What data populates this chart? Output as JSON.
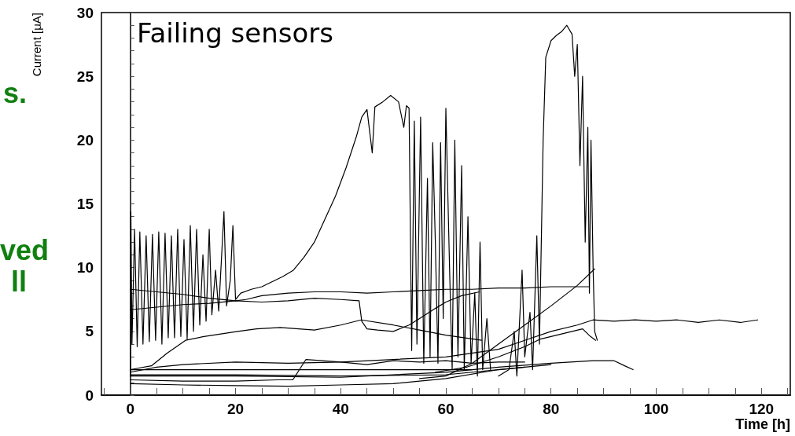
{
  "chart_data": {
    "type": "line",
    "title": "Failing sensors",
    "xlabel": "Time [h]",
    "ylabel": "Current [μA]",
    "annotations": [
      "s.",
      "ved",
      "ll"
    ],
    "marker": "none",
    "line_style": "solid",
    "xlim": [
      -5.5,
      125.5
    ],
    "ylim": [
      0,
      30
    ],
    "xticks": [
      {
        "value": -5,
        "label": null
      },
      0,
      {
        "value": 5,
        "label": null
      },
      {
        "value": 10,
        "label": null
      },
      {
        "value": 15,
        "label": null
      },
      20,
      {
        "value": 25,
        "label": null
      },
      {
        "value": 30,
        "label": null
      },
      {
        "value": 35,
        "label": null
      },
      40,
      {
        "value": 45,
        "label": null
      },
      {
        "value": 50,
        "label": null
      },
      {
        "value": 55,
        "label": null
      },
      60,
      {
        "value": 65,
        "label": null
      },
      {
        "value": 70,
        "label": null
      },
      {
        "value": 75,
        "label": null
      },
      80,
      {
        "value": 85,
        "label": null
      },
      {
        "value": 90,
        "label": null
      },
      {
        "value": 95,
        "label": null
      },
      100,
      {
        "value": 105,
        "label": null
      },
      {
        "value": 110,
        "label": null
      },
      {
        "value": 115,
        "label": null
      },
      120,
      {
        "value": 125,
        "label": null
      }
    ],
    "yticks": [
      0,
      {
        "value": 1,
        "label": null
      },
      {
        "value": 2,
        "label": null
      },
      {
        "value": 3,
        "label": null
      },
      {
        "value": 4,
        "label": null
      },
      5,
      {
        "value": 6,
        "label": null
      },
      {
        "value": 7,
        "label": null
      },
      {
        "value": 8,
        "label": null
      },
      {
        "value": 9,
        "label": null
      },
      10,
      {
        "value": 11,
        "label": null
      },
      {
        "value": 12,
        "label": null
      },
      {
        "value": 13,
        "label": null
      },
      {
        "value": 14,
        "label": null
      },
      15,
      {
        "value": 16,
        "label": null
      },
      {
        "value": 17,
        "label": null
      },
      {
        "value": 18,
        "label": null
      },
      {
        "value": 19,
        "label": null
      },
      20,
      {
        "value": 21,
        "label": null
      },
      {
        "value": 22,
        "label": null
      },
      {
        "value": 23,
        "label": null
      },
      {
        "value": 24,
        "label": null
      },
      25,
      {
        "value": 26,
        "label": null
      },
      {
        "value": 27,
        "label": null
      },
      {
        "value": 28,
        "label": null
      },
      {
        "value": 29,
        "label": null
      },
      30
    ],
    "series": [
      {
        "color": "#000000",
        "x": [
          0,
          0.1,
          0.3,
          0.8,
          1.3,
          1.8,
          2.4,
          3,
          3.6,
          4.2,
          4.8,
          5.4,
          6,
          6.6,
          7.2,
          7.8,
          8.4,
          9,
          9.6,
          10.2,
          10.8,
          11.4,
          12,
          12.6,
          13.2,
          13.8,
          14.4,
          15,
          15.5,
          16.2,
          16.8,
          17.8,
          18.3,
          19,
          19.5,
          20,
          21,
          23,
          25,
          27,
          29,
          31,
          33,
          35,
          37,
          39,
          41,
          43,
          44,
          45,
          46,
          46.5,
          48,
          49.5,
          51,
          52,
          52.5,
          53,
          53.5,
          54,
          54.5,
          55.2,
          55.8,
          56.5,
          57,
          57.5,
          58,
          58.5,
          59,
          59.5,
          60,
          60.7,
          61.2,
          61.7,
          62.3,
          63,
          63.5,
          64.2,
          64.8,
          65.5,
          66,
          66.5,
          67,
          67.8,
          68.5
        ],
        "values": [
          1.5,
          14.4,
          4.0,
          13.0,
          3.8,
          12.8,
          4.0,
          12.5,
          4.2,
          12.6,
          4.3,
          12.8,
          4.0,
          12.7,
          4.5,
          12.5,
          4.5,
          13.0,
          4.6,
          12.2,
          4.4,
          13.3,
          5.0,
          13.0,
          5.5,
          11.0,
          5.8,
          13.0,
          6.3,
          9.8,
          6.6,
          14.4,
          7.0,
          9.0,
          13.3,
          7.5,
          8.0,
          8.3,
          8.5,
          8.9,
          9.3,
          9.8,
          10.8,
          12.0,
          13.8,
          15.6,
          17.8,
          20.3,
          21.8,
          22.4,
          19.0,
          22.6,
          23.0,
          23.5,
          23.0,
          21.0,
          22.7,
          22.5,
          3.5,
          21.5,
          4.0,
          21.8,
          2.5,
          17.0,
          3.0,
          19.8,
          12.0,
          2.5,
          19.8,
          6.0,
          22.5,
          10.0,
          2.0,
          20.0,
          3.0,
          18.0,
          2.0,
          14.0,
          2.5,
          8.0,
          1.5,
          12.0,
          2.0,
          6.0,
          2.0
        ]
      },
      {
        "color": "#000000",
        "x": [
          70,
          72,
          73,
          73.5,
          74.5,
          75,
          76,
          76.5,
          77.3,
          77.8,
          78.5,
          79,
          80,
          81,
          82,
          83,
          84,
          84.5,
          85,
          85.5,
          86,
          86.5,
          87,
          87.3,
          87.6,
          88,
          88.3,
          88.8
        ],
        "values": [
          1.5,
          2.0,
          5.0,
          1.5,
          9.8,
          3.0,
          6.5,
          2.0,
          12.5,
          4.0,
          20.0,
          26.5,
          27.8,
          28.2,
          28.5,
          29.0,
          28.3,
          25.0,
          27.5,
          18.0,
          25.0,
          12.0,
          21.0,
          8.0,
          20.0,
          10.0,
          5.0,
          4.3
        ]
      },
      {
        "color": "#000000",
        "x": [
          0,
          5,
          10,
          15,
          20,
          22,
          25,
          30,
          35,
          40,
          45,
          50,
          55,
          60,
          65,
          70,
          75,
          80,
          85,
          87.3
        ],
        "values": [
          8.3,
          8.1,
          7.9,
          7.6,
          7.4,
          7.5,
          7.8,
          8.0,
          8.1,
          8.1,
          8.0,
          8.1,
          8.2,
          8.3,
          8.3,
          8.4,
          8.4,
          8.5,
          8.5,
          8.5
        ]
      },
      {
        "color": "#000000",
        "x": [
          0,
          5,
          10,
          15,
          20,
          25,
          30,
          35,
          40,
          43.5,
          44,
          45,
          47,
          50,
          53,
          55,
          58,
          60,
          63,
          66.4
        ],
        "values": [
          6.7,
          6.9,
          7.1,
          7.2,
          7.4,
          7.3,
          7.4,
          7.6,
          7.5,
          7.4,
          5.8,
          5.2,
          5.1,
          5.0,
          5.5,
          6.0,
          6.8,
          7.3,
          7.8,
          8.1
        ]
      },
      {
        "color": "#000000",
        "x": [
          0,
          4,
          7,
          10.5,
          14,
          20.4,
          24,
          28.5,
          32,
          35,
          40,
          43.9,
          50,
          55,
          60,
          66.8
        ],
        "values": [
          2.0,
          2.3,
          3.3,
          4.3,
          4.6,
          5.0,
          5.2,
          5.3,
          5.2,
          5.1,
          5.5,
          5.9,
          5.5,
          5.1,
          4.7,
          4.3
        ]
      },
      {
        "color": "#000000",
        "x": [
          55,
          60,
          65,
          70,
          75,
          80,
          85,
          88.3
        ],
        "values": [
          1.3,
          1.5,
          2.5,
          4.0,
          5.5,
          7.0,
          8.6,
          9.9
        ]
      },
      {
        "color": "#000000",
        "x": [
          0,
          5,
          10,
          20,
          30,
          40,
          50,
          60,
          70,
          75,
          80,
          85,
          88,
          92,
          96,
          100,
          104,
          108,
          112,
          116,
          119.3
        ],
        "values": [
          1.8,
          2.2,
          2.4,
          2.6,
          2.5,
          2.6,
          2.8,
          3.0,
          3.6,
          4.3,
          5.0,
          5.5,
          5.9,
          5.8,
          5.9,
          5.8,
          5.9,
          5.7,
          5.9,
          5.7,
          5.9
        ]
      },
      {
        "color": "#000000",
        "x": [
          58,
          64,
          70,
          75,
          78,
          82,
          86,
          87.5,
          88.5
        ],
        "values": [
          1.8,
          2.2,
          3.0,
          3.8,
          4.4,
          4.8,
          5.2,
          4.6,
          4.3
        ]
      },
      {
        "color": "#000000",
        "x": [
          0,
          10,
          20,
          28,
          30.9,
          33.4,
          40,
          45,
          50,
          55,
          60,
          65,
          70,
          75
        ],
        "values": [
          1.2,
          1.1,
          1.1,
          1.2,
          1.2,
          2.8,
          2.6,
          2.4,
          2.7,
          2.6,
          2.7,
          2.5,
          2.6,
          2.6
        ]
      },
      {
        "color": "#000000",
        "x": [
          0,
          20,
          40,
          60,
          70,
          80,
          88,
          92,
          94,
          95.6
        ],
        "values": [
          1.5,
          1.5,
          1.4,
          1.8,
          2.2,
          2.5,
          2.7,
          2.7,
          2.3,
          2.0
        ]
      },
      {
        "color": "#000000",
        "x": [
          0,
          20,
          40,
          60,
          65
        ],
        "values": [
          2.0,
          2.0,
          2.0,
          2.0,
          2.0
        ]
      },
      {
        "color": "#000000",
        "x": [
          0,
          10,
          20,
          30,
          40,
          50,
          60,
          70,
          80
        ],
        "values": [
          0.9,
          0.8,
          0.75,
          0.7,
          0.8,
          0.9,
          1.3,
          2.0,
          2.4
        ]
      },
      {
        "color": "#000000",
        "x": [
          0,
          20,
          40,
          60,
          75
        ],
        "values": [
          1.6,
          1.6,
          1.5,
          1.6,
          2.2
        ]
      }
    ]
  }
}
